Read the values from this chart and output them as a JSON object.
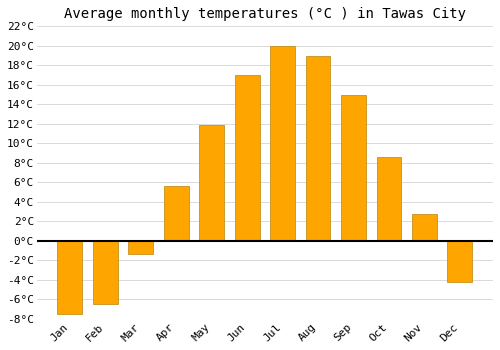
{
  "title": "Average monthly temperatures (°C ) in Tawas City",
  "months": [
    "Jan",
    "Feb",
    "Mar",
    "Apr",
    "May",
    "Jun",
    "Jul",
    "Aug",
    "Sep",
    "Oct",
    "Nov",
    "Dec"
  ],
  "temperatures": [
    -7.5,
    -6.5,
    -1.3,
    5.6,
    11.9,
    17.0,
    20.0,
    19.0,
    15.0,
    8.6,
    2.8,
    -4.2
  ],
  "bar_color": "#FFA500",
  "bar_edge_color": "#B8860B",
  "background_color": "#ffffff",
  "grid_color": "#cccccc",
  "ylim": [
    -8,
    22
  ],
  "yticks": [
    -8,
    -6,
    -4,
    -2,
    0,
    2,
    4,
    6,
    8,
    10,
    12,
    14,
    16,
    18,
    20,
    22
  ],
  "title_fontsize": 10,
  "tick_fontsize": 8,
  "font_family": "monospace"
}
